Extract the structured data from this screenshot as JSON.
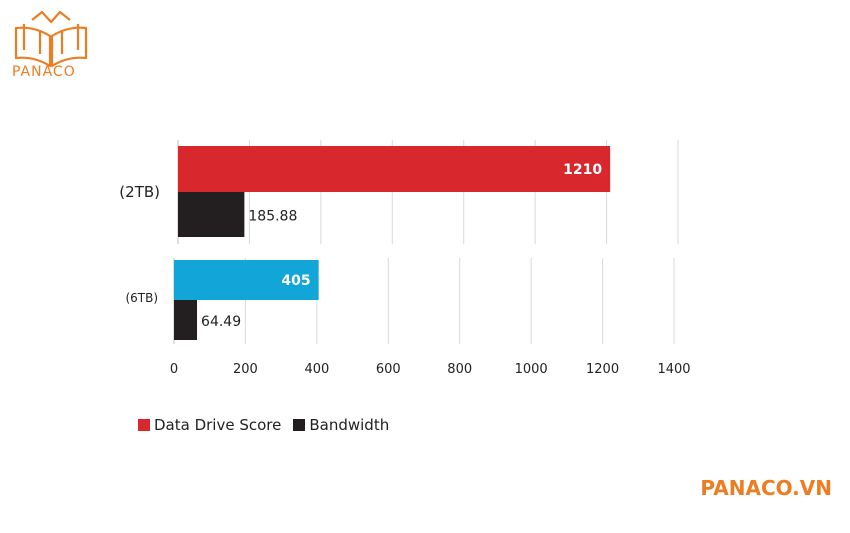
{
  "brand": {
    "logo_text": "PANACO",
    "watermark": "PANACO.VN",
    "color": "#ec7d22"
  },
  "chart_data": [
    {
      "type": "bar",
      "orientation": "horizontal",
      "categories": [
        "(2TB)"
      ],
      "series": [
        {
          "name": "Data Drive Score",
          "values": [
            1210
          ],
          "color": "#d9272e"
        },
        {
          "name": "Bandwidth",
          "values": [
            185.88
          ],
          "color": "#231f20"
        }
      ],
      "data_labels": [
        "1210",
        "185.88"
      ],
      "xlim": [
        0,
        1400
      ],
      "grid": true
    },
    {
      "type": "bar",
      "orientation": "horizontal",
      "categories": [
        "(6TB)"
      ],
      "series": [
        {
          "name": "Data Drive Score",
          "values": [
            405
          ],
          "color": "#12a5d8"
        },
        {
          "name": "Bandwidth",
          "values": [
            64.49
          ],
          "color": "#231f20"
        }
      ],
      "data_labels": [
        "405",
        "64.49"
      ],
      "xlim": [
        0,
        1400
      ],
      "xticks": [
        "0",
        "200",
        "400",
        "600",
        "800",
        "1000",
        "1200",
        "1400"
      ],
      "grid": true
    }
  ],
  "legend": {
    "position": "bottom-left",
    "items": [
      {
        "label": "Data Drive Score",
        "color": "#d9272e"
      },
      {
        "label": "Bandwidth",
        "color": "#231f20"
      }
    ]
  }
}
